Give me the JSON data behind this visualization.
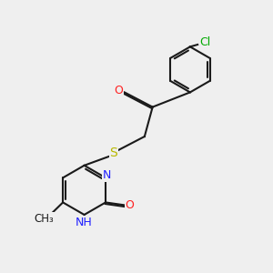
{
  "bg_color": "#efefef",
  "bond_color": "#1a1a1a",
  "N_color": "#2020ff",
  "O_color": "#ff2020",
  "S_color": "#b8b800",
  "Cl_color": "#00aa00",
  "lw": 1.5,
  "doff": 0.055,
  "xlim": [
    0,
    10
  ],
  "ylim": [
    0,
    10
  ]
}
